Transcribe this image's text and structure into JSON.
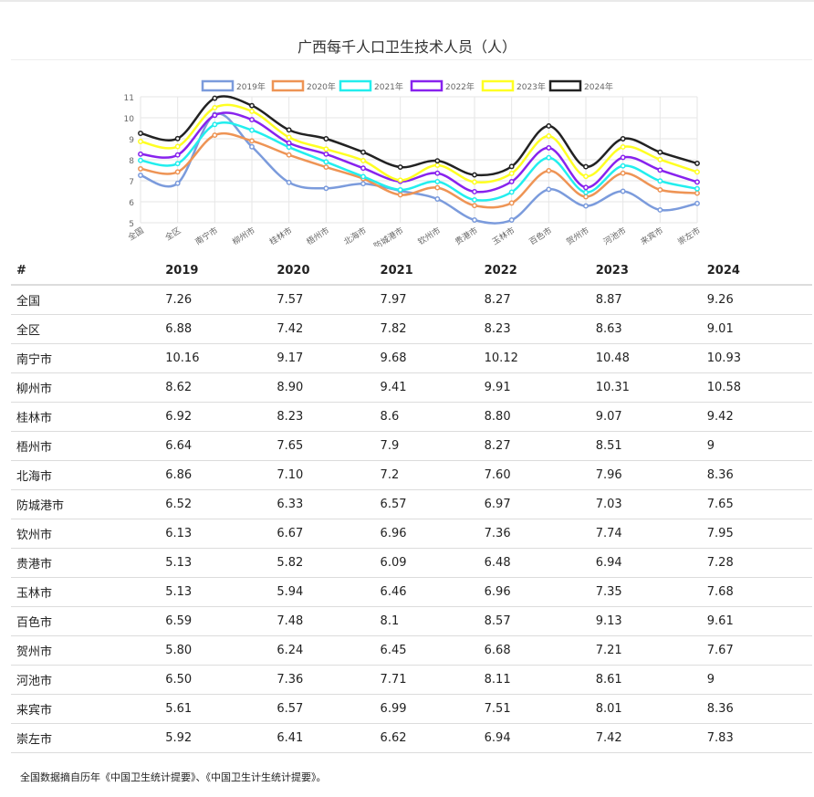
{
  "page": {
    "title": "广西每千人口卫生技术人员（人）",
    "footnote": "全国数据摘自历年《中国卫生统计提要》、《中国卫生计生统计提要》。"
  },
  "table": {
    "headers": [
      "#",
      "2019",
      "2020",
      "2021",
      "2022",
      "2023",
      "2024"
    ],
    "rows": [
      [
        "全国",
        "7.26",
        "7.57",
        "7.97",
        "8.27",
        "8.87",
        "9.26"
      ],
      [
        "全区",
        "6.88",
        "7.42",
        "7.82",
        "8.23",
        "8.63",
        "9.01"
      ],
      [
        "南宁市",
        "10.16",
        "9.17",
        "9.68",
        "10.12",
        "10.48",
        "10.93"
      ],
      [
        "柳州市",
        "8.62",
        "8.90",
        "9.41",
        "9.91",
        "10.31",
        "10.58"
      ],
      [
        "桂林市",
        "6.92",
        "8.23",
        "8.6",
        "8.80",
        "9.07",
        "9.42"
      ],
      [
        "梧州市",
        "6.64",
        "7.65",
        "7.9",
        "8.27",
        "8.51",
        "9"
      ],
      [
        "北海市",
        "6.86",
        "7.10",
        "7.2",
        "7.60",
        "7.96",
        "8.36"
      ],
      [
        "防城港市",
        "6.52",
        "6.33",
        "6.57",
        "6.97",
        "7.03",
        "7.65"
      ],
      [
        "钦州市",
        "6.13",
        "6.67",
        "6.96",
        "7.36",
        "7.74",
        "7.95"
      ],
      [
        "贵港市",
        "5.13",
        "5.82",
        "6.09",
        "6.48",
        "6.94",
        "7.28"
      ],
      [
        "玉林市",
        "5.13",
        "5.94",
        "6.46",
        "6.96",
        "7.35",
        "7.68"
      ],
      [
        "百色市",
        "6.59",
        "7.48",
        "8.1",
        "8.57",
        "9.13",
        "9.61"
      ],
      [
        "贺州市",
        "5.80",
        "6.24",
        "6.45",
        "6.68",
        "7.21",
        "7.67"
      ],
      [
        "河池市",
        "6.50",
        "7.36",
        "7.71",
        "8.11",
        "8.61",
        "9"
      ],
      [
        "来宾市",
        "5.61",
        "6.57",
        "6.99",
        "7.51",
        "8.01",
        "8.36"
      ],
      [
        "崇左市",
        "5.92",
        "6.41",
        "6.62",
        "6.94",
        "7.42",
        "7.83"
      ]
    ]
  },
  "chart_data": {
    "type": "line",
    "title": "广西每千人口卫生技术人员（人）",
    "categories": [
      "全国",
      "全区",
      "南宁市",
      "柳州市",
      "桂林市",
      "梧州市",
      "北海市",
      "防城港市",
      "钦州市",
      "贵港市",
      "玉林市",
      "百色市",
      "贺州市",
      "河池市",
      "来宾市",
      "崇左市"
    ],
    "ylim": [
      5,
      11
    ],
    "yticks": [
      "5",
      "6",
      "7",
      "8",
      "9",
      "10",
      "11"
    ],
    "grid": true,
    "legend_position": "top",
    "series": [
      {
        "name": "2019年",
        "color": "#7b9bdc",
        "values": [
          7.26,
          6.88,
          10.16,
          8.62,
          6.92,
          6.64,
          6.86,
          6.52,
          6.13,
          5.13,
          5.13,
          6.59,
          5.8,
          6.5,
          5.61,
          5.92
        ]
      },
      {
        "name": "2020年",
        "color": "#ee9455",
        "values": [
          7.57,
          7.42,
          9.17,
          8.9,
          8.23,
          7.65,
          7.1,
          6.33,
          6.67,
          5.82,
          5.94,
          7.48,
          6.24,
          7.36,
          6.57,
          6.41
        ]
      },
      {
        "name": "2021年",
        "color": "#22eeee",
        "values": [
          7.97,
          7.82,
          9.68,
          9.41,
          8.6,
          7.9,
          7.2,
          6.57,
          6.96,
          6.09,
          6.46,
          8.1,
          6.45,
          7.71,
          6.99,
          6.62
        ]
      },
      {
        "name": "2022年",
        "color": "#8822ee",
        "values": [
          8.27,
          8.23,
          10.12,
          9.91,
          8.8,
          8.27,
          7.6,
          6.97,
          7.36,
          6.48,
          6.96,
          8.57,
          6.68,
          8.11,
          7.51,
          6.94
        ]
      },
      {
        "name": "2023年",
        "color": "#ffff22",
        "values": [
          8.87,
          8.63,
          10.48,
          10.31,
          9.07,
          8.51,
          7.96,
          7.03,
          7.74,
          6.94,
          7.35,
          9.13,
          7.21,
          8.61,
          8.01,
          7.42
        ]
      },
      {
        "name": "2024年",
        "color": "#222222",
        "values": [
          9.26,
          9.01,
          10.93,
          10.58,
          9.42,
          9.0,
          8.36,
          7.65,
          7.95,
          7.28,
          7.68,
          9.61,
          7.67,
          9.0,
          8.36,
          7.83
        ]
      }
    ]
  }
}
